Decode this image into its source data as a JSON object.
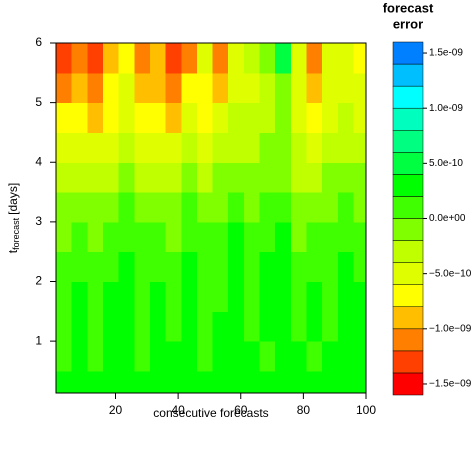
{
  "chart_data": {
    "type": "contour",
    "xlabel": "consecutive forecasts",
    "ylabel_parts": [
      "t",
      "forecast",
      "[days]"
    ],
    "colorbar_title": [
      "forecast",
      "error"
    ],
    "xlim": [
      1,
      100
    ],
    "ylim": [
      0.13,
      6
    ],
    "xticks": [
      20,
      40,
      60,
      80,
      100
    ],
    "yticks": [
      1,
      2,
      3,
      4,
      5,
      6
    ],
    "x": [
      3.5,
      8.5,
      13.5,
      18.5,
      23.5,
      28.5,
      33.5,
      38.5,
      43.5,
      48.5,
      53.5,
      58.5,
      63.5,
      68.5,
      73.5,
      78.5,
      83.5,
      88.5,
      93.5,
      98.5
    ],
    "y": [
      0.25,
      0.75,
      1.25,
      1.75,
      2.25,
      2.75,
      3.25,
      3.75,
      4.25,
      4.75,
      5.25,
      5.75
    ],
    "z": [
      [
        2.5e-10,
        3e-10,
        2e-10,
        2.5e-10,
        3e-10,
        2.5e-10,
        2e-10,
        3e-10,
        2.5e-10,
        3e-10,
        2.5e-10,
        3e-10,
        2e-10,
        3e-10,
        2.5e-10,
        3e-10,
        2e-10,
        2.5e-10,
        3e-10,
        2.5e-10
      ],
      [
        1.5e-10,
        2.5e-10,
        1e-10,
        2.5e-10,
        3e-10,
        1.5e-10,
        2.5e-10,
        2e-10,
        3e-10,
        1e-10,
        2.5e-10,
        3e-10,
        2.5e-10,
        1.5e-10,
        3e-10,
        2.5e-10,
        1e-10,
        2.5e-10,
        3e-10,
        2e-10
      ],
      [
        1e-10,
        2.5e-10,
        1.5e-10,
        2e-10,
        3e-10,
        1e-10,
        2.5e-10,
        1.5e-10,
        2.5e-10,
        1e-10,
        2e-10,
        3e-10,
        1.5e-10,
        2.5e-10,
        3e-10,
        1e-10,
        2.5e-10,
        1.5e-10,
        2.5e-10,
        2e-10
      ],
      [
        1e-10,
        2e-10,
        5e-11,
        2e-10,
        2.5e-10,
        1e-10,
        2e-10,
        1e-10,
        2.5e-10,
        5e-11,
        1.5e-10,
        2.5e-10,
        1e-10,
        2.5e-10,
        3e-10,
        1e-10,
        2e-10,
        1.5e-10,
        2e-10,
        2.5e-10
      ],
      [
        5e-11,
        1.5e-10,
        5e-11,
        1.5e-10,
        2e-10,
        1e-10,
        1.5e-10,
        5e-11,
        2e-10,
        1e-10,
        1e-10,
        2.5e-10,
        1.5e-10,
        2e-10,
        2.5e-10,
        5e-11,
        1.5e-10,
        1e-10,
        2e-10,
        1.5e-10
      ],
      [
        -5e-11,
        1e-10,
        -5e-11,
        1e-10,
        1.5e-10,
        5e-11,
        1e-10,
        -5e-11,
        1.5e-10,
        5e-11,
        5e-11,
        2e-10,
        1e-10,
        1.5e-10,
        2e-10,
        -5e-11,
        1e-10,
        5e-11,
        1.5e-10,
        1e-10
      ],
      [
        -1.5e-10,
        -5e-11,
        -1.5e-10,
        -1e-10,
        5e-11,
        -5e-11,
        -1e-10,
        -1.5e-10,
        5e-11,
        -1e-10,
        -5e-11,
        5e-11,
        -5e-11,
        5e-11,
        1e-10,
        -1.5e-10,
        -1e-10,
        -5e-11,
        5e-11,
        -5e-11
      ],
      [
        -3e-10,
        -2.5e-10,
        -3e-10,
        -2.5e-10,
        -1.5e-10,
        -2.5e-10,
        -3e-10,
        -3e-10,
        -1.5e-10,
        -2.5e-10,
        -2e-10,
        -1e-10,
        -1.5e-10,
        -5e-11,
        -5e-11,
        -2.5e-10,
        -2.5e-10,
        -1.5e-10,
        -1e-10,
        -1.5e-10
      ],
      [
        -5e-10,
        -4.5e-10,
        -5e-10,
        -4.5e-10,
        -3e-10,
        -5e-10,
        -4.5e-10,
        -5e-10,
        -3.5e-10,
        -4.5e-10,
        -3.5e-10,
        -2.5e-10,
        -2.5e-10,
        -1.5e-10,
        -1.5e-10,
        -4e-10,
        -4.5e-10,
        -3e-10,
        -2.5e-10,
        -3e-10
      ],
      [
        -8e-10,
        -7e-10,
        -8.5e-10,
        -7e-10,
        -5e-10,
        -8e-10,
        -7e-10,
        -8.5e-10,
        -6e-10,
        -6.5e-10,
        -6e-10,
        -4e-10,
        -3.5e-10,
        -3e-10,
        -2e-10,
        -5.5e-10,
        -7e-10,
        -4.5e-10,
        -4e-10,
        -4.5e-10
      ],
      [
        -1.1e-09,
        -9e-10,
        -1.2e-09,
        -8e-10,
        -6e-10,
        -1e-09,
        -9e-10,
        -1.1e-09,
        -8e-10,
        -7e-10,
        -9e-10,
        -5e-10,
        -4.5e-10,
        -3.5e-10,
        -1e-10,
        -6e-10,
        -1e-09,
        -5e-10,
        -5e-10,
        -6e-10
      ],
      [
        -1.3e-09,
        -1.1e-09,
        -1.35e-09,
        -9e-10,
        -7e-10,
        -1.2e-09,
        -1e-09,
        -1.3e-09,
        -1.1e-09,
        -6e-10,
        -1.2e-09,
        -6e-10,
        -4e-10,
        -2e-10,
        4e-10,
        -6e-10,
        -1.2e-09,
        -5e-10,
        -6e-10,
        -7e-10
      ]
    ],
    "levels": [
      -1.6e-09,
      -1.4e-09,
      -1.2e-09,
      -1e-09,
      -8e-10,
      -6e-10,
      -4e-10,
      -2e-10,
      0,
      2e-10,
      4e-10,
      6e-10,
      8e-10,
      1e-09,
      1.2e-09,
      1.4e-09,
      1.6e-09
    ],
    "colors": [
      "#FF0000",
      "#FF4000",
      "#FF8000",
      "#FFBF00",
      "#FFFF00",
      "#DFFF00",
      "#BFFF00",
      "#80FF00",
      "#40FF00",
      "#00FF00",
      "#00FF40",
      "#00FF80",
      "#00FFBF",
      "#00FFFF",
      "#00BFFF",
      "#0080FF"
    ],
    "cbticks": [
      {
        "value": 1.5e-09,
        "label": "1.5e-09"
      },
      {
        "value": 1e-09,
        "label": "1.0e-09"
      },
      {
        "value": 5e-10,
        "label": "5.0e-10"
      },
      {
        "value": 0,
        "label": "0.0e+00"
      },
      {
        "value": -5e-10,
        "label": "−5.0e−10"
      },
      {
        "value": -1e-09,
        "label": "−1.0e−09"
      },
      {
        "value": -1.5e-09,
        "label": "−1.5e−09"
      }
    ]
  }
}
